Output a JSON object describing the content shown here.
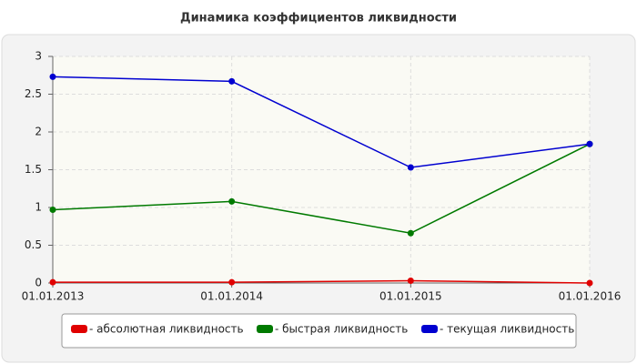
{
  "chart_data": {
    "type": "line",
    "title": "Динамика коэффициентов ликвидности",
    "categories": [
      "01.01.2013",
      "01.01.2014",
      "01.01.2015",
      "01.01.2016"
    ],
    "series": [
      {
        "name": "- абсолютная ликвидность",
        "color": "#e00000",
        "values": [
          0.01,
          0.01,
          0.03,
          0
        ]
      },
      {
        "name": "- быстрая ликвидность",
        "color": "#007a00",
        "values": [
          0.97,
          1.08,
          0.66,
          1.84
        ]
      },
      {
        "name": "- текущая ликвидность",
        "color": "#0000d0",
        "values": [
          2.73,
          2.67,
          1.53,
          1.84
        ]
      }
    ],
    "ylim": [
      0,
      3
    ],
    "yticks": [
      0,
      0.5,
      1,
      1.5,
      2,
      2.5,
      3
    ],
    "grid": true,
    "legend": "bottom"
  }
}
